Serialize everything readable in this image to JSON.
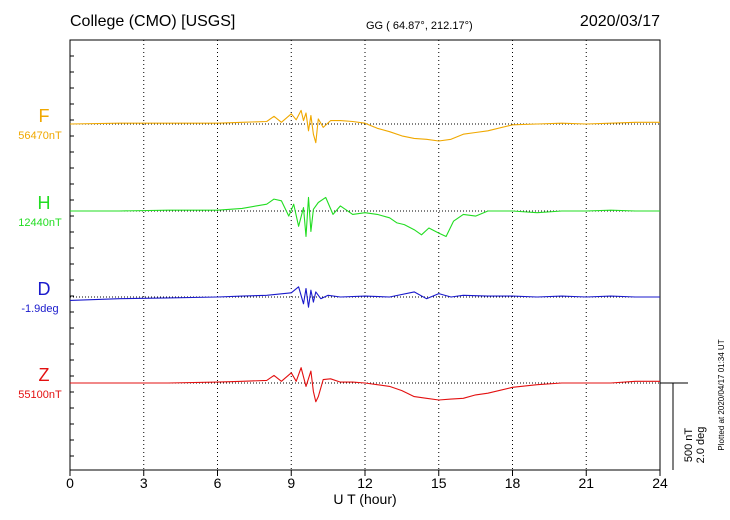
{
  "header": {
    "station": "College (CMO)  [USGS]",
    "coords": "GG ( 64.87°, 212.17°)",
    "date": "2020/03/17"
  },
  "side": {
    "scale_nt": "500 nT",
    "scale_deg": "2.0 deg",
    "plotted": "Plotted at 2020/04/17 01:34 UT"
  },
  "chart_data": {
    "type": "line",
    "xlabel": "U T (hour)",
    "xlim": [
      0,
      24
    ],
    "xticks": [
      0,
      3,
      6,
      9,
      12,
      15,
      18,
      21,
      24
    ],
    "grid": "dotted vertical lines every 3 hours",
    "scale_bar": "500 nT / 2.0 deg",
    "series": [
      {
        "name": "F",
        "baseline_label": "56470nT",
        "color": "#f0a800",
        "x": [
          0,
          2,
          4,
          6,
          7,
          8,
          8.3,
          8.6,
          9,
          9.2,
          9.4,
          9.5,
          9.6,
          9.7,
          9.8,
          9.9,
          10,
          10.1,
          10.3,
          10.6,
          11,
          11.5,
          12,
          12.5,
          13,
          13.5,
          14,
          14.5,
          15,
          15.5,
          16,
          16.5,
          17,
          18,
          19,
          20,
          21,
          22,
          23,
          24
        ],
        "y": [
          0,
          5,
          5,
          5,
          10,
          15,
          45,
          10,
          60,
          25,
          80,
          20,
          65,
          -40,
          50,
          -60,
          -110,
          30,
          -20,
          20,
          20,
          15,
          5,
          -25,
          -45,
          -70,
          -85,
          -90,
          -100,
          -90,
          -60,
          -50,
          -40,
          -5,
          0,
          5,
          0,
          5,
          10,
          10
        ]
      },
      {
        "name": "H",
        "baseline_label": "12440nT",
        "color": "#22dd22",
        "x": [
          0,
          2,
          4,
          6,
          7,
          8,
          8.3,
          8.6,
          8.9,
          9.1,
          9.3,
          9.5,
          9.6,
          9.7,
          9.8,
          9.9,
          10.1,
          10.4,
          10.7,
          11,
          11.5,
          12,
          12.5,
          13,
          13.3,
          13.6,
          14,
          14.3,
          14.6,
          15,
          15.3,
          15.6,
          16,
          16.5,
          17,
          18,
          19,
          20,
          21,
          22,
          23,
          24
        ],
        "y": [
          0,
          0,
          5,
          5,
          15,
          40,
          70,
          60,
          -30,
          40,
          -90,
          20,
          -150,
          80,
          -120,
          10,
          50,
          80,
          -20,
          30,
          -20,
          -10,
          -20,
          -40,
          -70,
          -80,
          -110,
          -140,
          -100,
          -130,
          -150,
          -60,
          -20,
          -30,
          0,
          0,
          -10,
          0,
          0,
          5,
          0,
          0
        ]
      },
      {
        "name": "D",
        "baseline_label": "-1.9deg",
        "color": "#1a1acc",
        "x": [
          0,
          2,
          4,
          6,
          7,
          8,
          9,
          9.3,
          9.5,
          9.6,
          9.7,
          9.8,
          9.9,
          10,
          10.2,
          10.5,
          11,
          12,
          13,
          14,
          14.5,
          15,
          15.5,
          16,
          17,
          18,
          19,
          20,
          21,
          22,
          23,
          24
        ],
        "y": [
          -20,
          -10,
          -5,
          0,
          5,
          10,
          25,
          60,
          -40,
          50,
          -60,
          40,
          -30,
          30,
          -10,
          10,
          0,
          5,
          0,
          30,
          -10,
          20,
          0,
          10,
          5,
          5,
          0,
          5,
          0,
          5,
          0,
          0
        ]
      },
      {
        "name": "Z",
        "baseline_label": "55100nT",
        "color": "#e31010",
        "x": [
          0,
          2,
          4,
          6,
          7,
          8,
          8.3,
          8.6,
          9,
          9.2,
          9.4,
          9.6,
          9.8,
          9.9,
          10,
          10.1,
          10.3,
          10.6,
          11,
          11.5,
          12,
          12.5,
          13,
          13.5,
          14,
          14.5,
          15,
          15.5,
          16,
          16.5,
          17,
          18,
          19,
          20,
          21,
          22,
          23,
          24
        ],
        "y": [
          0,
          0,
          0,
          5,
          10,
          15,
          45,
          10,
          60,
          10,
          90,
          -20,
          70,
          -50,
          -110,
          -80,
          20,
          25,
          5,
          5,
          0,
          -10,
          -20,
          -45,
          -80,
          -90,
          -100,
          -95,
          -90,
          -70,
          -60,
          -25,
          -10,
          0,
          0,
          0,
          10,
          10
        ]
      }
    ]
  }
}
